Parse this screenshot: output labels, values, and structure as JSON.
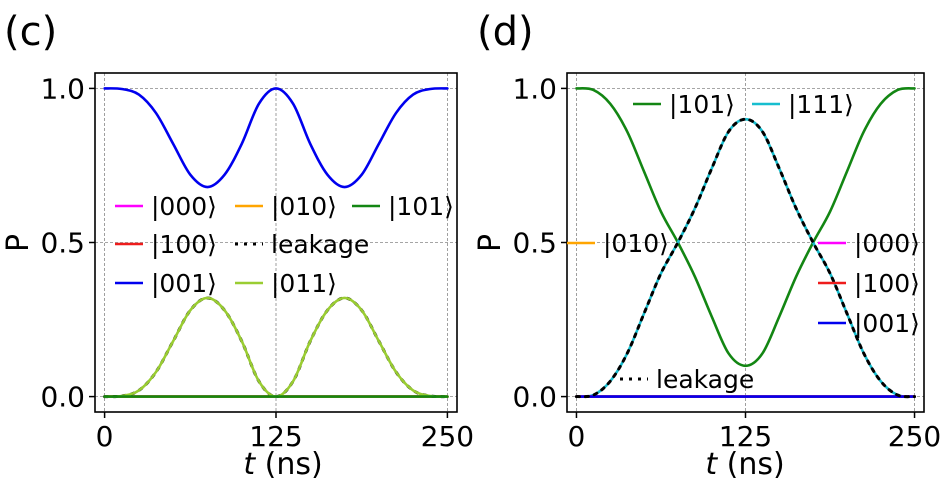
{
  "chart_data": [
    {
      "type": "line",
      "panel_label": "(c)",
      "xlabel": "t (ns)",
      "ylabel": "P",
      "xlim": [
        -7,
        257
      ],
      "ylim": [
        -0.05,
        1.05
      ],
      "xticks": [
        "0",
        "125",
        "250"
      ],
      "yticks": [
        "0.0",
        "0.5",
        "1.0"
      ],
      "grid": true,
      "legend": {
        "placement": "center-left",
        "columns": 3,
        "entries": [
          "|000⟩",
          "|100⟩",
          "|001⟩",
          "|010⟩",
          "leakage",
          "|011⟩",
          "|101⟩"
        ]
      },
      "series": [
        {
          "name": "|000⟩",
          "color": "#ff00ff",
          "style": "solid",
          "x": [
            0,
            25,
            50,
            75,
            100,
            125,
            150,
            175,
            200,
            225,
            250
          ],
          "values": [
            0,
            0,
            0,
            0,
            0,
            0,
            0,
            0,
            0,
            0,
            0
          ]
        },
        {
          "name": "|100⟩",
          "color": "#ee1c1c",
          "style": "solid",
          "x": [
            0,
            25,
            50,
            75,
            100,
            125,
            150,
            175,
            200,
            225,
            250
          ],
          "values": [
            0,
            0,
            0,
            0,
            0,
            0,
            0,
            0,
            0,
            0,
            0
          ]
        },
        {
          "name": "|001⟩",
          "color": "#0000ee",
          "style": "solid",
          "x": [
            0,
            12.5,
            25,
            37.5,
            50,
            62.5,
            75,
            87.5,
            100,
            112.5,
            125,
            137.5,
            150,
            162.5,
            175,
            187.5,
            200,
            212.5,
            225,
            237.5,
            250
          ],
          "values": [
            1.0,
            0.998,
            0.98,
            0.92,
            0.82,
            0.72,
            0.68,
            0.72,
            0.82,
            0.95,
            1.0,
            0.95,
            0.82,
            0.72,
            0.68,
            0.72,
            0.82,
            0.92,
            0.98,
            0.998,
            1.0
          ]
        },
        {
          "name": "|010⟩",
          "color": "#ffa500",
          "style": "solid",
          "x": [
            0,
            25,
            50,
            75,
            100,
            125,
            150,
            175,
            200,
            225,
            250
          ],
          "values": [
            0,
            0,
            0,
            0,
            0,
            0,
            0,
            0,
            0,
            0,
            0
          ]
        },
        {
          "name": "leakage",
          "color": "#000000",
          "style": "dotted",
          "x": [
            0,
            12.5,
            25,
            37.5,
            50,
            62.5,
            75,
            87.5,
            100,
            112.5,
            125,
            137.5,
            150,
            162.5,
            175,
            187.5,
            200,
            212.5,
            225,
            237.5,
            250
          ],
          "values": [
            0,
            0.002,
            0.02,
            0.08,
            0.18,
            0.28,
            0.32,
            0.28,
            0.18,
            0.05,
            0,
            0.05,
            0.18,
            0.28,
            0.32,
            0.28,
            0.18,
            0.08,
            0.02,
            0.002,
            0
          ]
        },
        {
          "name": "|011⟩",
          "color": "#9acd32",
          "style": "solid",
          "x": [
            0,
            12.5,
            25,
            37.5,
            50,
            62.5,
            75,
            87.5,
            100,
            112.5,
            125,
            137.5,
            150,
            162.5,
            175,
            187.5,
            200,
            212.5,
            225,
            237.5,
            250
          ],
          "values": [
            0,
            0.002,
            0.02,
            0.08,
            0.18,
            0.28,
            0.32,
            0.28,
            0.18,
            0.05,
            0,
            0.05,
            0.18,
            0.28,
            0.32,
            0.28,
            0.18,
            0.08,
            0.02,
            0.002,
            0
          ]
        },
        {
          "name": "|101⟩",
          "color": "#138613",
          "style": "solid",
          "x": [
            0,
            25,
            50,
            75,
            100,
            125,
            150,
            175,
            200,
            225,
            250
          ],
          "values": [
            0,
            0,
            0,
            0,
            0,
            0,
            0,
            0,
            0,
            0,
            0
          ]
        }
      ]
    },
    {
      "type": "line",
      "panel_label": "(d)",
      "xlabel": "t (ns)",
      "ylabel": "P",
      "xlim": [
        -7,
        257
      ],
      "ylim": [
        -0.05,
        1.05
      ],
      "xticks": [
        "0",
        "125",
        "250"
      ],
      "yticks": [
        "0.0",
        "0.5",
        "1.0"
      ],
      "grid": true,
      "legends": [
        {
          "placement": "top-center",
          "entries": [
            "|101⟩",
            "|111⟩"
          ]
        },
        {
          "placement": "center-left",
          "entries": [
            "|010⟩"
          ]
        },
        {
          "placement": "center-right",
          "entries": [
            "|000⟩",
            "|100⟩",
            "|001⟩"
          ]
        },
        {
          "placement": "bottom-center",
          "entries": [
            "leakage"
          ]
        }
      ],
      "series": [
        {
          "name": "|101⟩",
          "color": "#138613",
          "style": "solid",
          "x": [
            0,
            12.5,
            25,
            37.5,
            50,
            62.5,
            75,
            87.5,
            100,
            112.5,
            125,
            137.5,
            150,
            162.5,
            175,
            187.5,
            200,
            212.5,
            225,
            237.5,
            250
          ],
          "values": [
            1.0,
            0.995,
            0.95,
            0.86,
            0.73,
            0.6,
            0.5,
            0.39,
            0.26,
            0.14,
            0.1,
            0.14,
            0.26,
            0.39,
            0.5,
            0.6,
            0.73,
            0.86,
            0.95,
            0.995,
            1.0
          ]
        },
        {
          "name": "|111⟩",
          "color": "#17becf",
          "style": "solid",
          "x": [
            0,
            12.5,
            25,
            37.5,
            50,
            62.5,
            75,
            87.5,
            100,
            112.5,
            125,
            137.5,
            150,
            162.5,
            175,
            187.5,
            200,
            212.5,
            225,
            237.5,
            250
          ],
          "values": [
            0,
            0.005,
            0.05,
            0.14,
            0.27,
            0.4,
            0.5,
            0.61,
            0.74,
            0.86,
            0.9,
            0.86,
            0.74,
            0.61,
            0.5,
            0.4,
            0.27,
            0.14,
            0.05,
            0.005,
            0
          ]
        },
        {
          "name": "|010⟩",
          "color": "#ffa500",
          "style": "solid",
          "x": [
            0,
            25,
            50,
            75,
            100,
            125,
            150,
            175,
            200,
            225,
            250
          ],
          "values": [
            0,
            0,
            0,
            0,
            0,
            0,
            0,
            0,
            0,
            0,
            0
          ]
        },
        {
          "name": "|000⟩",
          "color": "#ff00ff",
          "style": "solid",
          "x": [
            0,
            25,
            50,
            75,
            100,
            125,
            150,
            175,
            200,
            225,
            250
          ],
          "values": [
            0,
            0,
            0,
            0,
            0,
            0,
            0,
            0,
            0,
            0,
            0
          ]
        },
        {
          "name": "|100⟩",
          "color": "#ee1c1c",
          "style": "solid",
          "x": [
            0,
            25,
            50,
            75,
            100,
            125,
            150,
            175,
            200,
            225,
            250
          ],
          "values": [
            0,
            0,
            0,
            0,
            0,
            0,
            0,
            0,
            0,
            0,
            0
          ]
        },
        {
          "name": "|001⟩",
          "color": "#0000ee",
          "style": "solid",
          "x": [
            0,
            25,
            50,
            75,
            100,
            125,
            150,
            175,
            200,
            225,
            250
          ],
          "values": [
            0,
            0,
            0,
            0,
            0,
            0,
            0,
            0,
            0,
            0,
            0
          ]
        },
        {
          "name": "leakage",
          "color": "#000000",
          "style": "dotted",
          "x": [
            0,
            12.5,
            25,
            37.5,
            50,
            62.5,
            75,
            87.5,
            100,
            112.5,
            125,
            137.5,
            150,
            162.5,
            175,
            187.5,
            200,
            212.5,
            225,
            237.5,
            250
          ],
          "values": [
            0,
            0.005,
            0.05,
            0.14,
            0.27,
            0.4,
            0.5,
            0.61,
            0.74,
            0.86,
            0.9,
            0.86,
            0.74,
            0.61,
            0.5,
            0.4,
            0.27,
            0.14,
            0.05,
            0.005,
            0
          ]
        }
      ]
    }
  ]
}
